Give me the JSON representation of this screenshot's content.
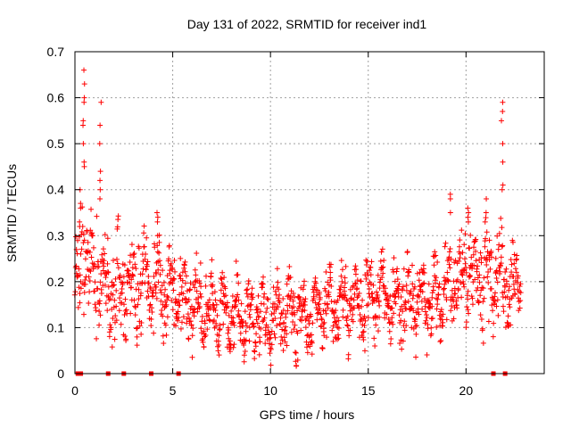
{
  "chart_data": {
    "type": "scatter",
    "title": "Day 131 of 2022, SRMTID for receiver ind1",
    "xlabel": "GPS time / hours",
    "ylabel": "SRMTID / TECUs",
    "xlim": [
      0,
      24
    ],
    "ylim": [
      0,
      0.7
    ],
    "x_ticks": [
      0,
      5,
      10,
      15,
      20
    ],
    "y_ticks": [
      0,
      0.1,
      0.2,
      0.3,
      0.4,
      0.5,
      0.6,
      0.7
    ],
    "x_tick_labels": [
      "0",
      "5",
      "10",
      "15",
      "20"
    ],
    "y_tick_labels": [
      "0",
      "0.1",
      "0.2",
      "0.3",
      "0.4",
      "0.5",
      "0.6",
      "0.7"
    ],
    "grid": true,
    "marker": "+",
    "series_color": "#ff0000",
    "zero_markers_x": [
      0.15,
      0.3,
      1.7,
      2.5,
      3.9,
      5.3,
      21.4,
      22.0
    ],
    "trend": [
      {
        "x": 0.0,
        "y": 0.18,
        "spread": 0.12
      },
      {
        "x": 0.5,
        "y": 0.26,
        "spread": 0.14
      },
      {
        "x": 1.0,
        "y": 0.22,
        "spread": 0.13
      },
      {
        "x": 2.0,
        "y": 0.18,
        "spread": 0.12
      },
      {
        "x": 3.0,
        "y": 0.19,
        "spread": 0.12
      },
      {
        "x": 4.0,
        "y": 0.2,
        "spread": 0.12
      },
      {
        "x": 5.0,
        "y": 0.18,
        "spread": 0.1
      },
      {
        "x": 6.0,
        "y": 0.16,
        "spread": 0.09
      },
      {
        "x": 7.0,
        "y": 0.14,
        "spread": 0.08
      },
      {
        "x": 8.0,
        "y": 0.13,
        "spread": 0.08
      },
      {
        "x": 9.0,
        "y": 0.12,
        "spread": 0.08
      },
      {
        "x": 10.0,
        "y": 0.12,
        "spread": 0.08
      },
      {
        "x": 11.0,
        "y": 0.13,
        "spread": 0.08
      },
      {
        "x": 12.0,
        "y": 0.13,
        "spread": 0.08
      },
      {
        "x": 13.0,
        "y": 0.14,
        "spread": 0.08
      },
      {
        "x": 14.0,
        "y": 0.15,
        "spread": 0.08
      },
      {
        "x": 15.0,
        "y": 0.16,
        "spread": 0.09
      },
      {
        "x": 16.0,
        "y": 0.16,
        "spread": 0.09
      },
      {
        "x": 17.0,
        "y": 0.16,
        "spread": 0.09
      },
      {
        "x": 18.0,
        "y": 0.17,
        "spread": 0.09
      },
      {
        "x": 19.0,
        "y": 0.18,
        "spread": 0.1
      },
      {
        "x": 20.0,
        "y": 0.22,
        "spread": 0.11
      },
      {
        "x": 21.0,
        "y": 0.2,
        "spread": 0.11
      },
      {
        "x": 22.0,
        "y": 0.2,
        "spread": 0.11
      },
      {
        "x": 22.8,
        "y": 0.2,
        "spread": 0.1
      }
    ],
    "spikes": [
      {
        "x": 0.25,
        "values": [
          0.33,
          0.37,
          0.4,
          0.36,
          0.32
        ]
      },
      {
        "x": 0.45,
        "values": [
          0.45,
          0.5,
          0.54,
          0.59,
          0.63,
          0.66,
          0.6,
          0.55,
          0.46
        ]
      },
      {
        "x": 1.3,
        "values": [
          0.5,
          0.54,
          0.59,
          0.44,
          0.42,
          0.4,
          0.38
        ]
      },
      {
        "x": 4.2,
        "values": [
          0.34,
          0.35,
          0.33,
          0.3
        ]
      },
      {
        "x": 19.2,
        "values": [
          0.35,
          0.38,
          0.39
        ]
      },
      {
        "x": 20.1,
        "values": [
          0.35,
          0.34,
          0.36,
          0.33
        ]
      },
      {
        "x": 21.0,
        "values": [
          0.35,
          0.38,
          0.33
        ]
      },
      {
        "x": 21.85,
        "values": [
          0.41,
          0.46,
          0.5,
          0.55,
          0.57,
          0.59,
          0.4
        ]
      }
    ]
  }
}
